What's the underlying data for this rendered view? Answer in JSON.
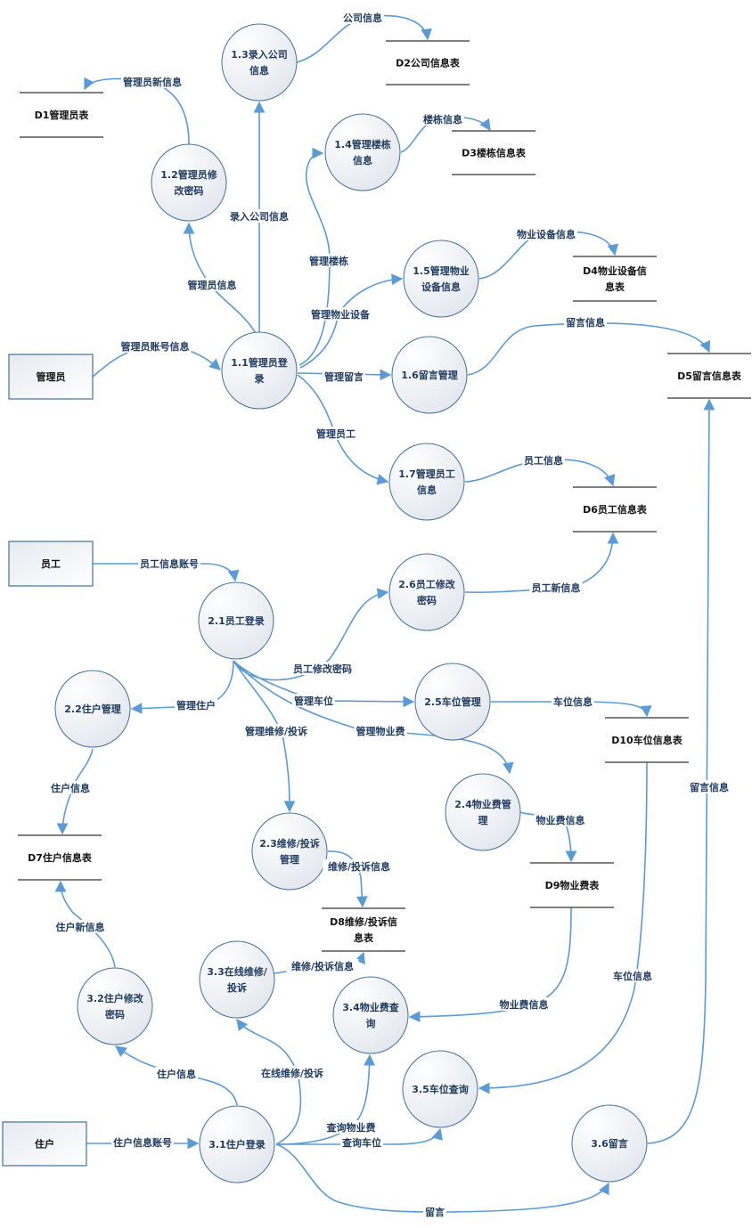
{
  "diagram": {
    "colors": {
      "flow": "#5b9bd5",
      "process_border": "#41719c",
      "text": "#1f3a5f"
    },
    "entities": [
      {
        "id": "admin",
        "label": "管理员"
      },
      {
        "id": "staff",
        "label": "员工"
      },
      {
        "id": "resident",
        "label": "住户"
      }
    ],
    "processes": [
      {
        "id": "p11",
        "lines": [
          "1.1管理员登",
          "录"
        ]
      },
      {
        "id": "p12",
        "lines": [
          "1.2管理员修",
          "改密码"
        ]
      },
      {
        "id": "p13",
        "lines": [
          "1.3录入公司",
          "信息"
        ]
      },
      {
        "id": "p14",
        "lines": [
          "1.4管理楼栋",
          "信息"
        ]
      },
      {
        "id": "p15",
        "lines": [
          "1.5管理物业",
          "设备信息"
        ]
      },
      {
        "id": "p16",
        "lines": [
          "1.6留言管理"
        ]
      },
      {
        "id": "p17",
        "lines": [
          "1.7管理员工",
          "信息"
        ]
      },
      {
        "id": "p21",
        "lines": [
          "2.1员工登录"
        ]
      },
      {
        "id": "p26",
        "lines": [
          "2.6员工修改",
          "密码"
        ]
      },
      {
        "id": "p22",
        "lines": [
          "2.2住户管理"
        ]
      },
      {
        "id": "p25",
        "lines": [
          "2.5车位管理"
        ]
      },
      {
        "id": "p24",
        "lines": [
          "2.4物业费管",
          "理"
        ]
      },
      {
        "id": "p23",
        "lines": [
          "2.3维修/投诉",
          "管理"
        ]
      },
      {
        "id": "p33",
        "lines": [
          "3.3在线维修/",
          "投诉"
        ]
      },
      {
        "id": "p34",
        "lines": [
          "3.4物业费查",
          "询"
        ]
      },
      {
        "id": "p32",
        "lines": [
          "3.2住户修改",
          "密码"
        ]
      },
      {
        "id": "p35",
        "lines": [
          "3.5车位查询"
        ]
      },
      {
        "id": "p31",
        "lines": [
          "3.1住户登录"
        ]
      },
      {
        "id": "p36",
        "lines": [
          "3.6留言"
        ]
      }
    ],
    "stores": [
      {
        "id": "d1",
        "lines": [
          "D1管理员表"
        ]
      },
      {
        "id": "d2",
        "lines": [
          "D2公司信息表"
        ]
      },
      {
        "id": "d3",
        "lines": [
          "D3楼栋信息表"
        ]
      },
      {
        "id": "d4",
        "lines": [
          "D4物业设备信",
          "息表"
        ]
      },
      {
        "id": "d5",
        "lines": [
          "D5留言信息表"
        ]
      },
      {
        "id": "d6",
        "lines": [
          "D6员工信息表"
        ]
      },
      {
        "id": "d7",
        "lines": [
          "D7住户信息表"
        ]
      },
      {
        "id": "d8",
        "lines": [
          "D8维修/投诉信",
          "息表"
        ]
      },
      {
        "id": "d9",
        "lines": [
          "D9物业费表"
        ]
      },
      {
        "id": "d10",
        "lines": [
          "D10车位信息表"
        ]
      }
    ],
    "flows": [
      {
        "id": "f1",
        "label": "公司信息",
        "from": "1.3",
        "to": "D2"
      },
      {
        "id": "f2",
        "label": "管理员新信息",
        "from": "1.2",
        "to": "D1"
      },
      {
        "id": "f3",
        "label": "管理员信息",
        "from": "1.1",
        "to": "1.2"
      },
      {
        "id": "f4",
        "label": "录入公司信息",
        "from": "1.1",
        "to": "1.3"
      },
      {
        "id": "f5",
        "label": "管理楼栋",
        "from": "1.1",
        "to": "1.4"
      },
      {
        "id": "f6",
        "label": "楼栋信息",
        "from": "1.4",
        "to": "D3"
      },
      {
        "id": "f7",
        "label": "管理物业设备",
        "from": "1.1",
        "to": "1.5"
      },
      {
        "id": "f8",
        "label": "物业设备信息",
        "from": "1.5",
        "to": "D4"
      },
      {
        "id": "f9",
        "label": "管理留言",
        "from": "1.1",
        "to": "1.6"
      },
      {
        "id": "f10",
        "label": "留言信息",
        "from": "1.6",
        "to": "D5"
      },
      {
        "id": "f11",
        "label": "管理员工",
        "from": "1.1",
        "to": "1.7"
      },
      {
        "id": "f12",
        "label": "员工信息",
        "from": "1.7",
        "to": "D6"
      },
      {
        "id": "f13",
        "label": "管理员账号信息",
        "from": "管理员",
        "to": "1.1"
      },
      {
        "id": "f14",
        "label": "员工信息账号",
        "from": "员工",
        "to": "2.1"
      },
      {
        "id": "f15",
        "label": "员工新信息",
        "from": "2.6",
        "to": "D6"
      },
      {
        "id": "f16",
        "label": "员工修改密码",
        "from": "2.1",
        "to": "2.6"
      },
      {
        "id": "f17",
        "label": "管理车位",
        "from": "2.1",
        "to": "2.5"
      },
      {
        "id": "f18",
        "label": "管理住户",
        "from": "2.1",
        "to": "2.2"
      },
      {
        "id": "f19",
        "label": "车位信息",
        "from": "2.5",
        "to": "D10"
      },
      {
        "id": "f20",
        "label": "管理维修/投诉",
        "from": "2.1",
        "to": "2.3"
      },
      {
        "id": "f21",
        "label": "管理物业费",
        "from": "2.1",
        "to": "2.4"
      },
      {
        "id": "f22",
        "label": "住户信息",
        "from": "2.2",
        "to": "D7"
      },
      {
        "id": "f23",
        "label": "物业费信息",
        "from": "2.4",
        "to": "D9"
      },
      {
        "id": "f24",
        "label": "维修/投诉信息",
        "from": "2.3",
        "to": "D8"
      },
      {
        "id": "f25",
        "label": "住户新信息",
        "from": "3.2",
        "to": "D7"
      },
      {
        "id": "f26",
        "label": "维修/投诉信息",
        "from": "3.3",
        "to": "D8"
      },
      {
        "id": "f27",
        "label": "车位信息",
        "from": "D10",
        "to": "3.5"
      },
      {
        "id": "f28",
        "label": "物业费信息",
        "from": "D9",
        "to": "3.4"
      },
      {
        "id": "f29",
        "label": "住户信息",
        "from": "3.1",
        "to": "3.2"
      },
      {
        "id": "f30",
        "label": "在线维修/投诉",
        "from": "3.1",
        "to": "3.3"
      },
      {
        "id": "f31",
        "label": "查询物业费",
        "from": "3.1",
        "to": "3.4"
      },
      {
        "id": "f32",
        "label": "查询车位",
        "from": "3.1",
        "to": "3.5"
      },
      {
        "id": "f33",
        "label": "住户信息账号",
        "from": "住户",
        "to": "3.1"
      },
      {
        "id": "f34",
        "label": "留言",
        "from": "3.1",
        "to": "3.6"
      },
      {
        "id": "f35",
        "label": "留言信息",
        "from": "3.6",
        "to": "D5"
      }
    ]
  }
}
